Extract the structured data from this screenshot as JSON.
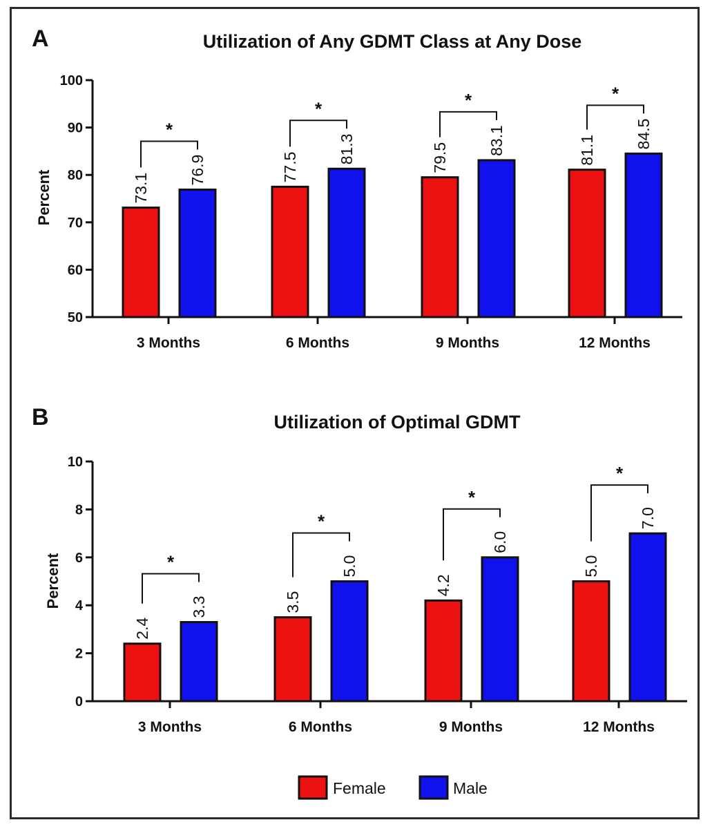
{
  "colors": {
    "female": "#ee1111",
    "male": "#1111ee",
    "axis": "#111111"
  },
  "legend": [
    {
      "name": "Female",
      "color": "#ee1111"
    },
    {
      "name": "Male",
      "color": "#1111ee"
    }
  ],
  "chart_data": [
    {
      "panel": "A",
      "type": "bar",
      "title": "Utilization of Any GDMT Class at Any Dose",
      "ylabel": "Percent",
      "xlabel": "",
      "ylim": [
        50,
        100
      ],
      "yticks": [
        50,
        60,
        70,
        80,
        90,
        100
      ],
      "categories": [
        "3 Months",
        "6 Months",
        "9 Months",
        "12 Months"
      ],
      "series": [
        {
          "name": "Female",
          "values": [
            73.1,
            77.5,
            79.5,
            81.1
          ],
          "labels": [
            "73.1",
            "77.5",
            "79.5",
            "81.1"
          ]
        },
        {
          "name": "Male",
          "values": [
            76.9,
            81.3,
            83.1,
            84.5
          ],
          "labels": [
            "76.9",
            "81.3",
            "83.1",
            "84.5"
          ]
        }
      ],
      "annotations": [
        "*",
        "*",
        "*",
        "*"
      ],
      "grid": false,
      "legend_position": "bottom"
    },
    {
      "panel": "B",
      "type": "bar",
      "title": "Utilization of Optimal GDMT",
      "ylabel": "Percent",
      "xlabel": "",
      "ylim": [
        0,
        10
      ],
      "yticks": [
        0,
        2,
        4,
        6,
        8,
        10
      ],
      "categories": [
        "3 Months",
        "6 Months",
        "9 Months",
        "12 Months"
      ],
      "series": [
        {
          "name": "Female",
          "values": [
            2.4,
            3.5,
            4.2,
            5.0
          ],
          "labels": [
            "2.4",
            "3.5",
            "4.2",
            "5.0"
          ]
        },
        {
          "name": "Male",
          "values": [
            3.3,
            5.0,
            6.0,
            7.0
          ],
          "labels": [
            "3.3",
            "5.0",
            "6.0",
            "7.0"
          ]
        }
      ],
      "annotations": [
        "*",
        "*",
        "*",
        "*"
      ],
      "grid": false,
      "legend_position": "bottom"
    }
  ]
}
